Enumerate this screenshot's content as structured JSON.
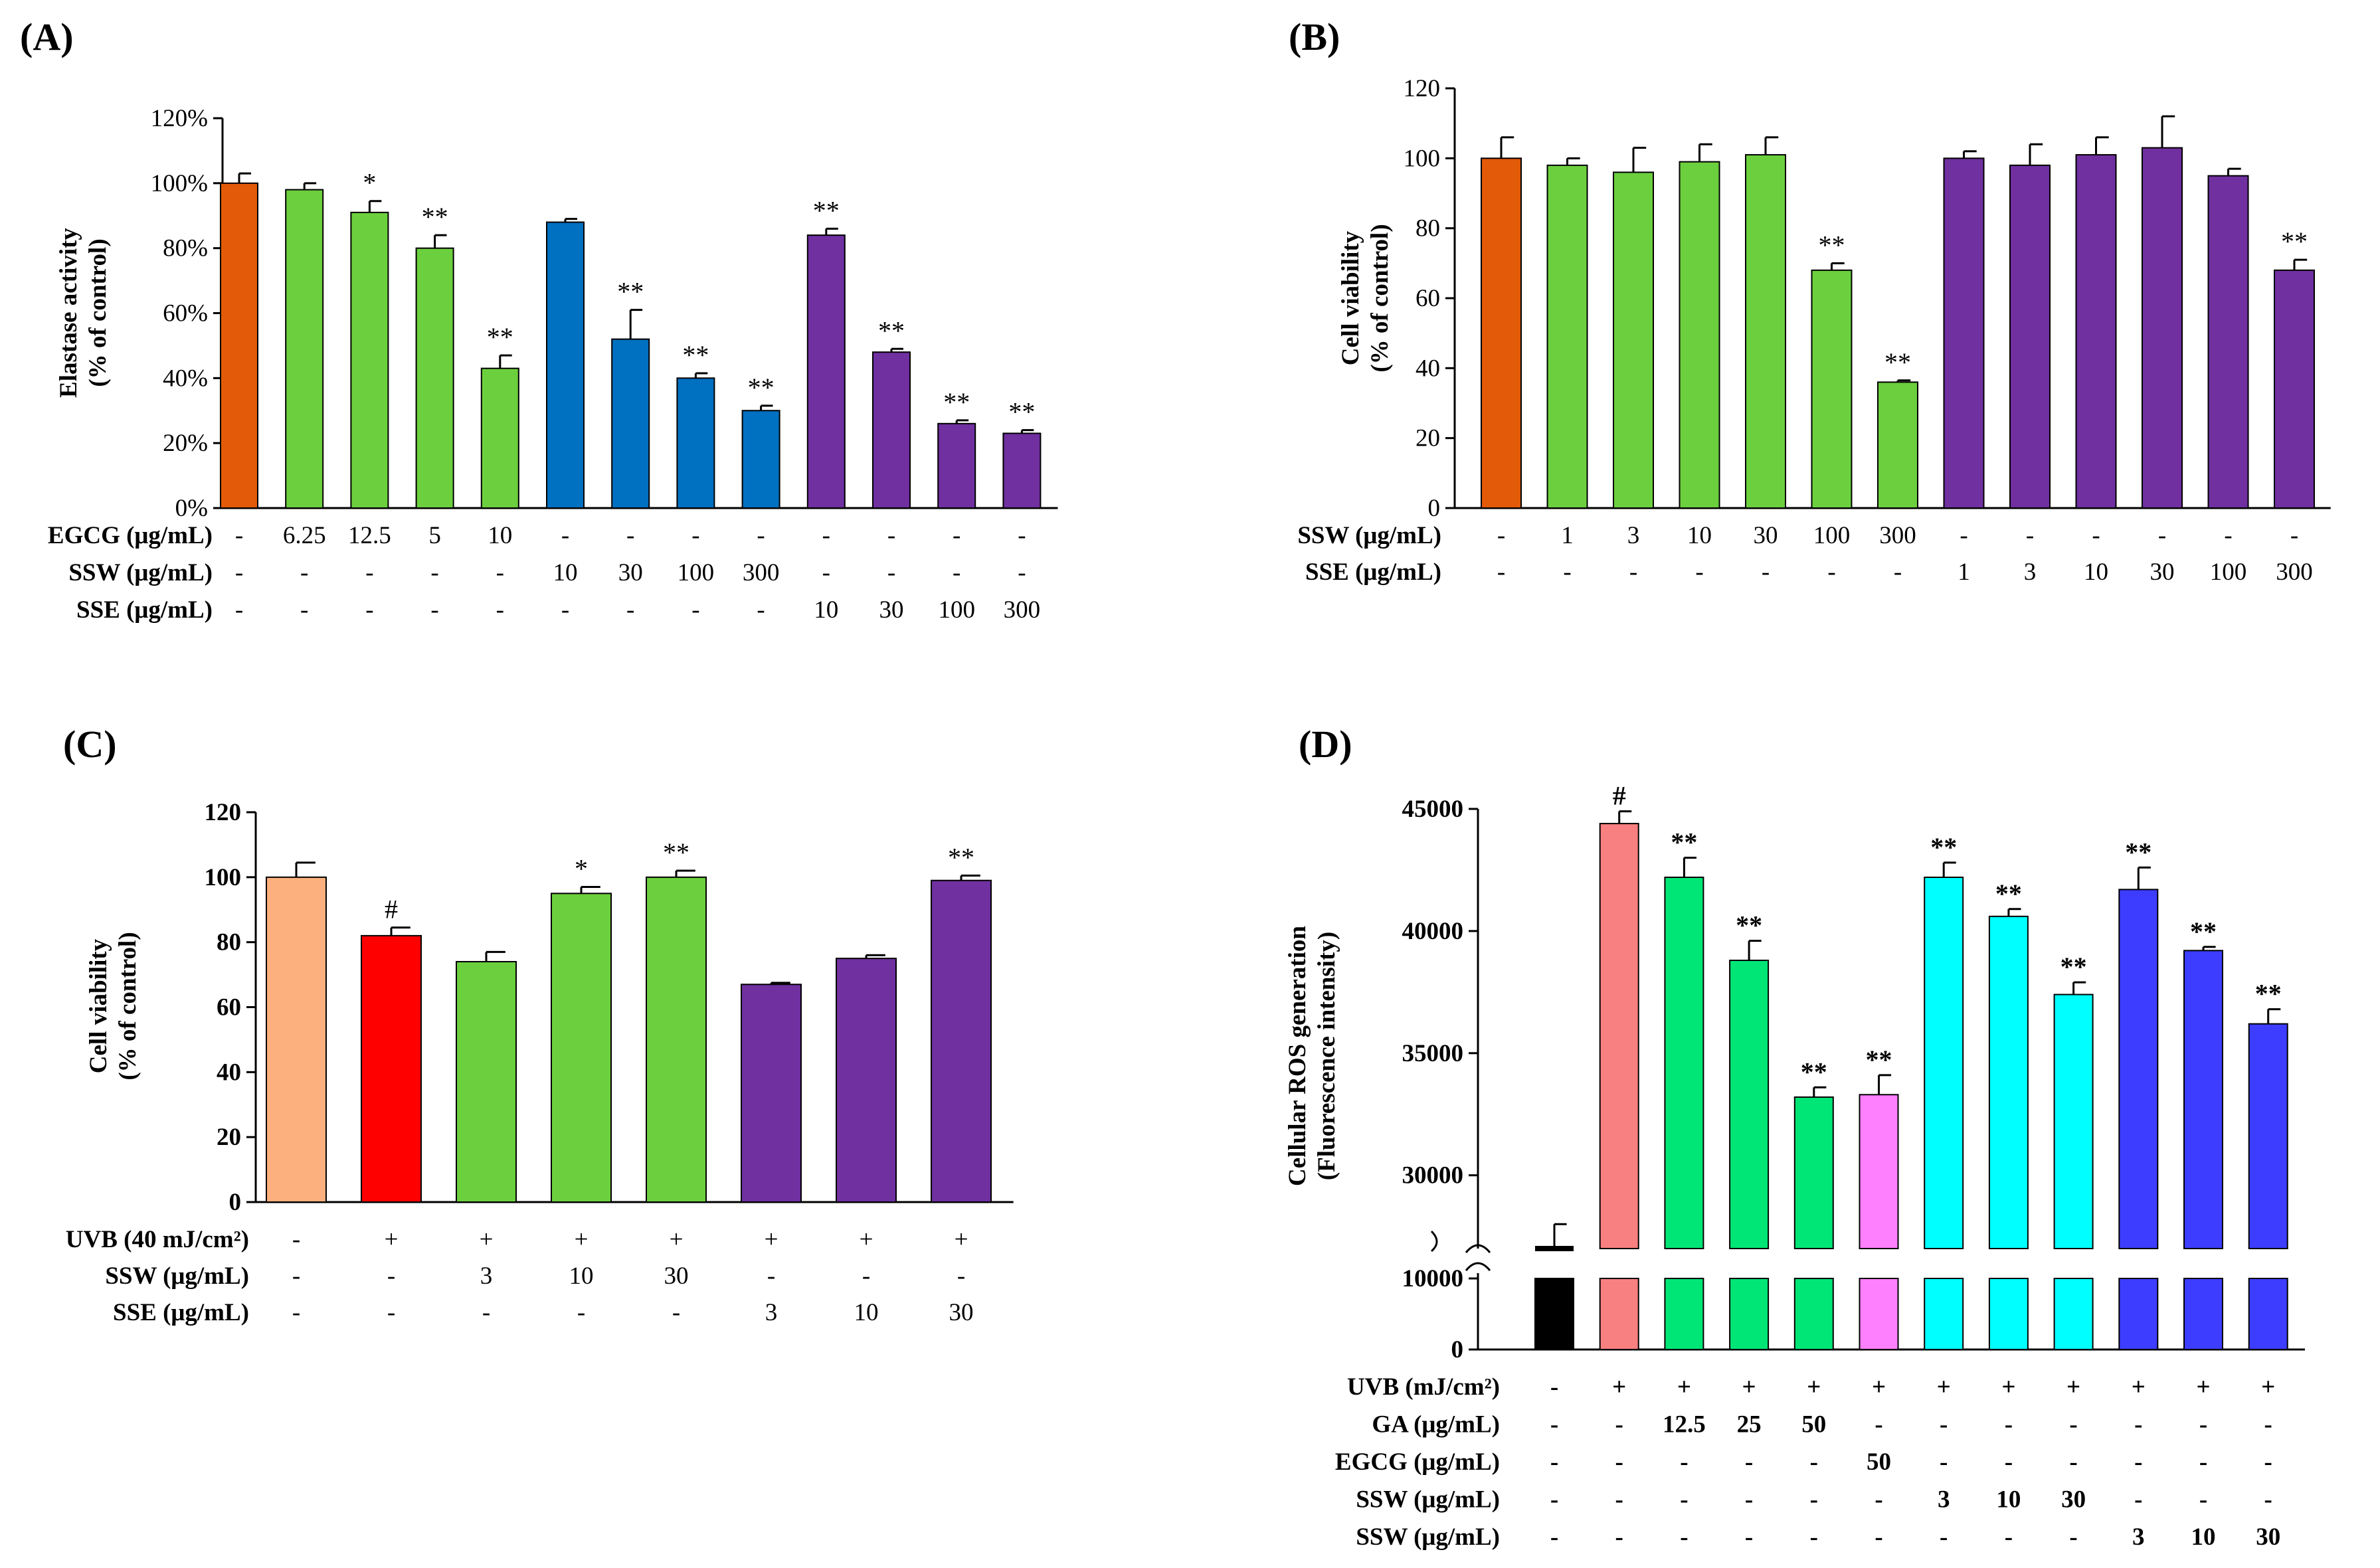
{
  "chart_data": [
    {
      "id": "A",
      "type": "bar",
      "panel_label": "(A)",
      "ylabel": [
        "Elastase activity",
        "(% of control)"
      ],
      "ylim": [
        0,
        120
      ],
      "yticks": [
        "0%",
        "20%",
        "40%",
        "60%",
        "80%",
        "100%",
        "120%"
      ],
      "values": [
        100,
        98,
        91,
        80,
        43,
        88,
        52,
        40,
        30,
        84,
        48,
        26,
        23
      ],
      "errors": [
        3,
        2,
        3.5,
        4,
        4,
        1,
        9,
        1.5,
        1.5,
        2,
        1,
        1,
        1
      ],
      "colors": [
        "#E35A08",
        "#6CCF3E",
        "#6CCF3E",
        "#6CCF3E",
        "#6CCF3E",
        "#0070C0",
        "#0070C0",
        "#0070C0",
        "#0070C0",
        "#7030A0",
        "#7030A0",
        "#7030A0",
        "#7030A0"
      ],
      "significance": [
        "",
        "",
        "*",
        "**",
        "**",
        "",
        "**",
        "**",
        "**",
        "**",
        "**",
        "**",
        "**"
      ],
      "conditions": [
        {
          "label": "EGCG (μg/mL)",
          "values": [
            "-",
            "6.25",
            "12.5",
            "5",
            "10",
            "-",
            "-",
            "-",
            "-",
            "-",
            "-",
            "-",
            "-"
          ]
        },
        {
          "label": "SSW (μg/mL)",
          "values": [
            "-",
            "-",
            "-",
            "-",
            "-",
            "10",
            "30",
            "100",
            "300",
            "-",
            "-",
            "-",
            "-"
          ]
        },
        {
          "label": "SSE (μg/mL)",
          "values": [
            "-",
            "-",
            "-",
            "-",
            "-",
            "-",
            "-",
            "-",
            "-",
            "10",
            "30",
            "100",
            "300"
          ]
        }
      ]
    },
    {
      "id": "B",
      "type": "bar",
      "panel_label": "(B)",
      "ylabel": [
        "Cell viability",
        "(% of control)"
      ],
      "ylim": [
        0,
        120
      ],
      "yticks": [
        "0",
        "20",
        "40",
        "60",
        "80",
        "100",
        "120"
      ],
      "values": [
        100,
        98,
        96,
        99,
        101,
        68,
        36,
        100,
        98,
        101,
        103,
        95,
        68
      ],
      "errors": [
        6,
        2,
        7,
        5,
        5,
        2,
        0.5,
        2,
        6,
        5,
        9,
        2,
        3
      ],
      "colors": [
        "#E35A08",
        "#6CCF3E",
        "#6CCF3E",
        "#6CCF3E",
        "#6CCF3E",
        "#6CCF3E",
        "#6CCF3E",
        "#7030A0",
        "#7030A0",
        "#7030A0",
        "#7030A0",
        "#7030A0",
        "#7030A0"
      ],
      "significance": [
        "",
        "",
        "",
        "",
        "",
        "**",
        "**",
        "",
        "",
        "",
        "",
        "",
        "**"
      ],
      "conditions": [
        {
          "label": "SSW (μg/mL)",
          "values": [
            "-",
            "1",
            "3",
            "10",
            "30",
            "100",
            "300",
            "-",
            "-",
            "-",
            "-",
            "-",
            "-"
          ]
        },
        {
          "label": "SSE (μg/mL)",
          "values": [
            "-",
            "-",
            "-",
            "-",
            "-",
            "-",
            "-",
            "1",
            "3",
            "10",
            "30",
            "100",
            "300"
          ]
        }
      ]
    },
    {
      "id": "C",
      "type": "bar",
      "panel_label": "(C)",
      "ylabel": [
        "Cell viability",
        "(% of control)"
      ],
      "ylim": [
        0,
        120
      ],
      "yticks": [
        "0",
        "20",
        "40",
        "60",
        "80",
        "100",
        "120"
      ],
      "values": [
        100,
        82,
        74,
        95,
        100,
        67,
        75,
        99
      ],
      "errors": [
        4.5,
        2.5,
        3,
        2,
        2,
        0.5,
        1,
        1.5
      ],
      "colors": [
        "#FBB07E",
        "#FF0000",
        "#6CCF3E",
        "#6CCF3E",
        "#6CCF3E",
        "#7030A0",
        "#7030A0",
        "#7030A0"
      ],
      "significance": [
        "",
        "#",
        "",
        "*",
        "**",
        "",
        "",
        "**"
      ],
      "conditions": [
        {
          "label": "UVB (40 mJ/cm²)",
          "values": [
            "-",
            "+",
            "+",
            "+",
            "+",
            "+",
            "+",
            "+"
          ]
        },
        {
          "label": "SSW (μg/mL)",
          "values": [
            "-",
            "-",
            "3",
            "10",
            "30",
            "-",
            "-",
            "-"
          ]
        },
        {
          "label": "SSE (μg/mL)",
          "values": [
            "-",
            "-",
            "-",
            "-",
            "-",
            "3",
            "10",
            "30"
          ]
        }
      ]
    },
    {
      "id": "D",
      "type": "bar",
      "panel_label": "(D)",
      "ylabel": [
        "Cellular ROS generation",
        "(Fluorescence intensity)"
      ],
      "axis_break": true,
      "lower_ylim": [
        0,
        10000
      ],
      "lower_yticks": [
        "0",
        "10000"
      ],
      "upper_ylim": [
        27000,
        45000
      ],
      "upper_yticks": [
        "30000",
        "35000",
        "40000",
        "45000"
      ],
      "values": [
        27000,
        44400,
        42200,
        38800,
        33200,
        33300,
        42200,
        40600,
        37400,
        41700,
        39200,
        36200
      ],
      "errors": [
        1000,
        500,
        800,
        800,
        400,
        800,
        600,
        300,
        500,
        900,
        150,
        600
      ],
      "colors": [
        "#000000",
        "#F98080",
        "#00E676",
        "#00E676",
        "#00E676",
        "#FF80FF",
        "#00FFFF",
        "#00FFFF",
        "#00FFFF",
        "#3D3DFF",
        "#3D3DFF",
        "#3D3DFF"
      ],
      "significance": [
        "",
        "#",
        "**",
        "**",
        "**",
        "**",
        "**",
        "**",
        "**",
        "**",
        "**",
        "**"
      ],
      "conditions": [
        {
          "label": "UVB (mJ/cm²)",
          "values": [
            "-",
            "+",
            "+",
            "+",
            "+",
            "+",
            "+",
            "+",
            "+",
            "+",
            "+",
            "+"
          ]
        },
        {
          "label": "GA (μg/mL)",
          "values": [
            "-",
            "-",
            "12.5",
            "25",
            "50",
            "-",
            "-",
            "-",
            "-",
            "-",
            "-",
            "-"
          ]
        },
        {
          "label": "EGCG (μg/mL)",
          "values": [
            "-",
            "-",
            "-",
            "-",
            "-",
            "50",
            "-",
            "-",
            "-",
            "-",
            "-",
            "-"
          ]
        },
        {
          "label": "SSW (μg/mL)",
          "values": [
            "-",
            "-",
            "-",
            "-",
            "-",
            "-",
            "3",
            "10",
            "30",
            "-",
            "-",
            "-"
          ]
        },
        {
          "label": "SSW (μg/mL)",
          "values": [
            "-",
            "-",
            "-",
            "-",
            "-",
            "-",
            "-",
            "-",
            "-",
            "3",
            "10",
            "30"
          ]
        }
      ]
    }
  ]
}
